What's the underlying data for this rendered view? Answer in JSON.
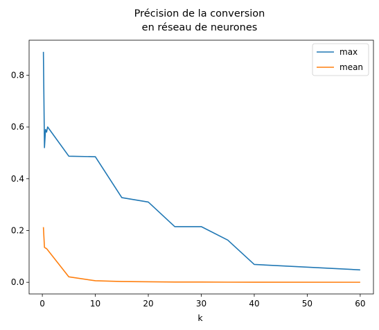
{
  "chart_data": {
    "type": "line",
    "title": [
      "Précision de la conversion",
      "en réseau de neurones"
    ],
    "xlabel": "k",
    "ylabel": "",
    "xlim": [
      -2.5,
      62.5
    ],
    "ylim": [
      -0.045,
      0.935
    ],
    "xticks": [
      0,
      10,
      20,
      30,
      40,
      50,
      60
    ],
    "xtick_labels": [
      "0",
      "10",
      "20",
      "30",
      "40",
      "50",
      "60"
    ],
    "yticks": [
      0.0,
      0.2,
      0.4,
      0.6,
      0.8
    ],
    "ytick_labels": [
      "0.0",
      "0.2",
      "0.4",
      "0.6",
      "0.8"
    ],
    "grid": false,
    "legend_position": "top-right",
    "series": [
      {
        "name": "max",
        "color": "#1f77b4",
        "x": [
          0.2,
          0.4,
          0.6,
          0.8,
          1,
          5,
          10,
          15,
          20,
          25,
          30,
          35,
          40,
          60
        ],
        "y": [
          0.89,
          0.52,
          0.59,
          0.58,
          0.6,
          0.487,
          0.485,
          0.327,
          0.31,
          0.215,
          0.215,
          0.163,
          0.069,
          0.048
        ]
      },
      {
        "name": "mean",
        "color": "#ff7f0e",
        "x": [
          0.2,
          0.4,
          0.6,
          0.8,
          1,
          5,
          10,
          15,
          20,
          25,
          30,
          35,
          40,
          60
        ],
        "y": [
          0.213,
          0.135,
          0.132,
          0.13,
          0.125,
          0.021,
          0.006,
          0.003,
          0.002,
          0.001,
          0.001,
          0.0005,
          0.0003,
          0.0002
        ]
      }
    ]
  }
}
